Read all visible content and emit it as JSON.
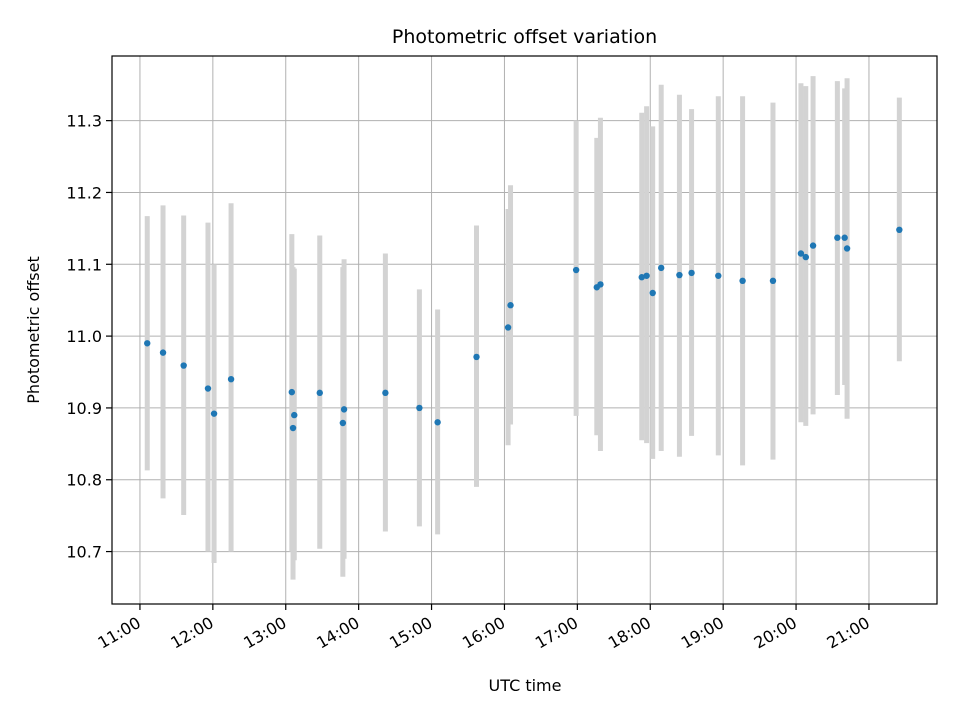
{
  "chart_data": {
    "type": "scatter",
    "title": "Photometric offset variation",
    "xlabel": "UTC time",
    "ylabel": "Photometric offset",
    "x_ticks": [
      "11:00",
      "12:00",
      "13:00",
      "14:00",
      "15:00",
      "16:00",
      "17:00",
      "18:00",
      "19:00",
      "20:00",
      "21:00"
    ],
    "y_ticks": [
      "10.7",
      "10.8",
      "10.9",
      "11.0",
      "11.1",
      "11.2",
      "11.3"
    ],
    "xlim": [
      "10:37",
      "21:56"
    ],
    "ylim": [
      10.627,
      11.39
    ],
    "grid": true,
    "marker_color": "#1f77b4",
    "errorbar_color": "#d3d3d3",
    "points": [
      {
        "t": "11:06",
        "y": 10.99,
        "lo": 10.813,
        "hi": 11.167
      },
      {
        "t": "11:19",
        "y": 10.977,
        "lo": 10.774,
        "hi": 11.182
      },
      {
        "t": "11:36",
        "y": 10.959,
        "lo": 10.751,
        "hi": 11.168
      },
      {
        "t": "11:56",
        "y": 10.927,
        "lo": 10.7,
        "hi": 11.158
      },
      {
        "t": "12:01",
        "y": 10.892,
        "lo": 10.684,
        "hi": 11.1
      },
      {
        "t": "12:15",
        "y": 10.94,
        "lo": 10.7,
        "hi": 11.185
      },
      {
        "t": "13:05",
        "y": 10.922,
        "lo": 10.7,
        "hi": 11.142
      },
      {
        "t": "13:06",
        "y": 10.872,
        "lo": 10.661,
        "hi": 11.096
      },
      {
        "t": "13:07",
        "y": 10.89,
        "lo": 10.688,
        "hi": 11.094
      },
      {
        "t": "13:28",
        "y": 10.921,
        "lo": 10.704,
        "hi": 11.14
      },
      {
        "t": "13:47",
        "y": 10.879,
        "lo": 10.665,
        "hi": 11.096
      },
      {
        "t": "13:48",
        "y": 10.898,
        "lo": 10.69,
        "hi": 11.107
      },
      {
        "t": "14:22",
        "y": 10.921,
        "lo": 10.728,
        "hi": 11.115
      },
      {
        "t": "14:50",
        "y": 10.9,
        "lo": 10.735,
        "hi": 11.065
      },
      {
        "t": "15:05",
        "y": 10.88,
        "lo": 10.724,
        "hi": 11.037
      },
      {
        "t": "15:37",
        "y": 10.971,
        "lo": 10.79,
        "hi": 11.154
      },
      {
        "t": "16:03",
        "y": 11.012,
        "lo": 10.848,
        "hi": 11.177
      },
      {
        "t": "16:05",
        "y": 11.043,
        "lo": 10.877,
        "hi": 11.21
      },
      {
        "t": "16:59",
        "y": 11.092,
        "lo": 10.889,
        "hi": 11.3
      },
      {
        "t": "17:16",
        "y": 11.068,
        "lo": 10.862,
        "hi": 11.276
      },
      {
        "t": "17:19",
        "y": 11.072,
        "lo": 10.84,
        "hi": 11.304
      },
      {
        "t": "17:53",
        "y": 11.082,
        "lo": 10.855,
        "hi": 11.311
      },
      {
        "t": "17:57",
        "y": 11.084,
        "lo": 10.851,
        "hi": 11.32
      },
      {
        "t": "18:02",
        "y": 11.06,
        "lo": 10.829,
        "hi": 11.292
      },
      {
        "t": "18:09",
        "y": 11.095,
        "lo": 10.84,
        "hi": 11.35
      },
      {
        "t": "18:24",
        "y": 11.085,
        "lo": 10.832,
        "hi": 11.336
      },
      {
        "t": "18:34",
        "y": 11.088,
        "lo": 10.861,
        "hi": 11.316
      },
      {
        "t": "18:56",
        "y": 11.084,
        "lo": 10.834,
        "hi": 11.334
      },
      {
        "t": "19:16",
        "y": 11.077,
        "lo": 10.82,
        "hi": 11.334
      },
      {
        "t": "19:41",
        "y": 11.077,
        "lo": 10.828,
        "hi": 11.325
      },
      {
        "t": "20:04",
        "y": 11.115,
        "lo": 10.88,
        "hi": 11.352
      },
      {
        "t": "20:08",
        "y": 11.11,
        "lo": 10.875,
        "hi": 11.348
      },
      {
        "t": "20:14",
        "y": 11.126,
        "lo": 10.891,
        "hi": 11.362
      },
      {
        "t": "20:34",
        "y": 11.137,
        "lo": 10.918,
        "hi": 11.355
      },
      {
        "t": "20:40",
        "y": 11.137,
        "lo": 10.932,
        "hi": 11.345
      },
      {
        "t": "20:42",
        "y": 11.122,
        "lo": 10.885,
        "hi": 11.359
      },
      {
        "t": "21:25",
        "y": 11.148,
        "lo": 10.965,
        "hi": 11.332
      }
    ]
  }
}
